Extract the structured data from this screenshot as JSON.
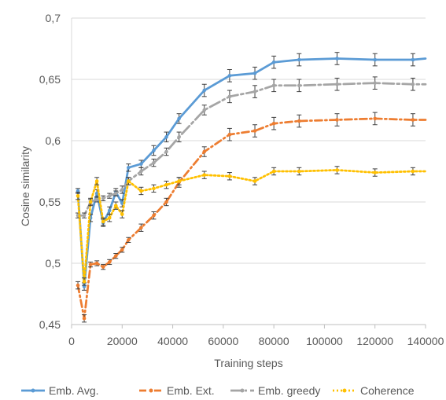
{
  "chart_data": {
    "type": "line",
    "title": "",
    "xlabel": "Training steps",
    "ylabel": "Cosine similarity",
    "xlim": [
      0,
      140000
    ],
    "ylim": [
      0.45,
      0.7
    ],
    "x_ticks": [
      0,
      20000,
      40000,
      60000,
      80000,
      100000,
      120000,
      140000
    ],
    "x_tick_labels": [
      "0",
      "20000",
      "40000",
      "60000",
      "80000",
      "100000",
      "120000",
      "140000"
    ],
    "y_ticks": [
      0.45,
      0.5,
      0.55,
      0.6,
      0.65,
      0.7
    ],
    "y_tick_labels": [
      "0,45",
      "0,5",
      "0,55",
      "0,6",
      "0,65",
      "0,7"
    ],
    "grid": "horizontal",
    "legend_position": "bottom",
    "series": [
      {
        "name": "Emb. Avg.",
        "color": "#5B9BD5",
        "dash": "solid",
        "x": [
          2500,
          5000,
          7500,
          10000,
          12500,
          15000,
          17500,
          20000,
          22500,
          27500,
          32500,
          37500,
          42500,
          52500,
          62500,
          72500,
          80000,
          90000,
          105000,
          120000,
          135000,
          140000
        ],
        "y": [
          0.559,
          0.481,
          0.537,
          0.557,
          0.533,
          0.543,
          0.558,
          0.549,
          0.578,
          0.581,
          0.592,
          0.603,
          0.618,
          0.641,
          0.653,
          0.655,
          0.664,
          0.666,
          0.667,
          0.666,
          0.666,
          0.667
        ],
        "err": [
          0.002,
          0.003,
          0.003,
          0.003,
          0.003,
          0.003,
          0.003,
          0.003,
          0.003,
          0.003,
          0.004,
          0.004,
          0.004,
          0.005,
          0.005,
          0.005,
          0.005,
          0.005,
          0.005,
          0.005,
          0.005,
          0.0
        ]
      },
      {
        "name": "Emb. Ext.",
        "color": "#ED7D31",
        "dash": "dash-dot",
        "x": [
          2500,
          5000,
          7500,
          10000,
          12500,
          15000,
          17500,
          20000,
          22500,
          27500,
          32500,
          37500,
          42500,
          52500,
          62500,
          72500,
          80000,
          90000,
          105000,
          120000,
          135000,
          140000
        ],
        "y": [
          0.482,
          0.455,
          0.499,
          0.5,
          0.497,
          0.501,
          0.506,
          0.511,
          0.519,
          0.529,
          0.539,
          0.55,
          0.566,
          0.591,
          0.605,
          0.608,
          0.614,
          0.616,
          0.617,
          0.618,
          0.617,
          0.617
        ],
        "err": [
          0.003,
          0.003,
          0.002,
          0.002,
          0.002,
          0.002,
          0.002,
          0.002,
          0.002,
          0.003,
          0.003,
          0.003,
          0.004,
          0.004,
          0.005,
          0.005,
          0.005,
          0.005,
          0.005,
          0.005,
          0.005,
          0.0
        ]
      },
      {
        "name": "Emb. greedy",
        "color": "#A5A5A5",
        "dash": "long-dash-dot",
        "x": [
          2500,
          5000,
          7500,
          10000,
          12500,
          15000,
          17500,
          20000,
          22500,
          27500,
          32500,
          37500,
          42500,
          52500,
          62500,
          72500,
          80000,
          90000,
          105000,
          120000,
          135000,
          140000
        ],
        "y": [
          0.539,
          0.539,
          0.55,
          0.552,
          0.553,
          0.555,
          0.557,
          0.56,
          0.567,
          0.575,
          0.582,
          0.591,
          0.603,
          0.625,
          0.636,
          0.64,
          0.645,
          0.645,
          0.646,
          0.647,
          0.646,
          0.646
        ],
        "err": [
          0.002,
          0.002,
          0.002,
          0.002,
          0.002,
          0.002,
          0.002,
          0.003,
          0.003,
          0.003,
          0.003,
          0.003,
          0.004,
          0.004,
          0.005,
          0.005,
          0.005,
          0.005,
          0.005,
          0.005,
          0.005,
          0.0
        ]
      },
      {
        "name": "Coherence",
        "color": "#FFC000",
        "dash": "dotted",
        "x": [
          2500,
          5000,
          7500,
          10000,
          12500,
          15000,
          17500,
          20000,
          22500,
          27500,
          32500,
          37500,
          42500,
          52500,
          62500,
          72500,
          80000,
          90000,
          105000,
          120000,
          135000,
          140000
        ],
        "y": [
          0.555,
          0.485,
          0.55,
          0.567,
          0.534,
          0.537,
          0.547,
          0.54,
          0.567,
          0.559,
          0.561,
          0.564,
          0.567,
          0.572,
          0.571,
          0.567,
          0.575,
          0.575,
          0.576,
          0.574,
          0.575,
          0.575
        ],
        "err": [
          0.003,
          0.003,
          0.003,
          0.003,
          0.003,
          0.003,
          0.003,
          0.003,
          0.003,
          0.003,
          0.003,
          0.003,
          0.003,
          0.003,
          0.003,
          0.003,
          0.003,
          0.003,
          0.003,
          0.003,
          0.003,
          0.0
        ]
      }
    ]
  }
}
